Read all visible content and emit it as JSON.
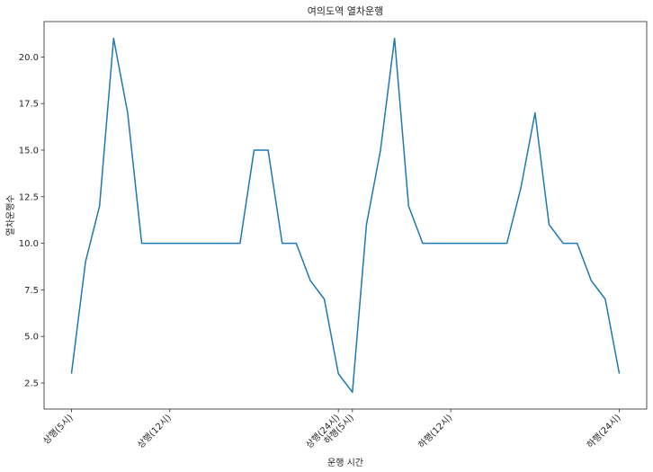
{
  "chart_data": {
    "type": "line",
    "title": "여의도역 열차운행",
    "xlabel": "운행 시간",
    "ylabel": "열차운행수",
    "x_tick_labels": [
      {
        "index": 0,
        "label": "상행(5시)"
      },
      {
        "index": 7,
        "label": "상행(12시)"
      },
      {
        "index": 19,
        "label": "상행(24시)"
      },
      {
        "index": 20,
        "label": "하행(5시)"
      },
      {
        "index": 27,
        "label": "하행(12시)"
      },
      {
        "index": 39,
        "label": "하행(24시)"
      }
    ],
    "yticks": [
      "2.5",
      "5.0",
      "7.5",
      "10.0",
      "12.5",
      "15.0",
      "17.5",
      "20.0"
    ],
    "ylim": [
      1.1,
      21.9
    ],
    "xlim": [
      -1.95,
      40.95
    ],
    "grid": false,
    "series": [
      {
        "color": "#1f77b4",
        "values": [
          3,
          9,
          12,
          21,
          17,
          10,
          10,
          10,
          10,
          10,
          10,
          10,
          10,
          15,
          15,
          10,
          10,
          8,
          7,
          3,
          2,
          11,
          15,
          21,
          12,
          10,
          10,
          10,
          10,
          10,
          10,
          10,
          13,
          17,
          11,
          10,
          10,
          8,
          7,
          3
        ]
      }
    ]
  }
}
